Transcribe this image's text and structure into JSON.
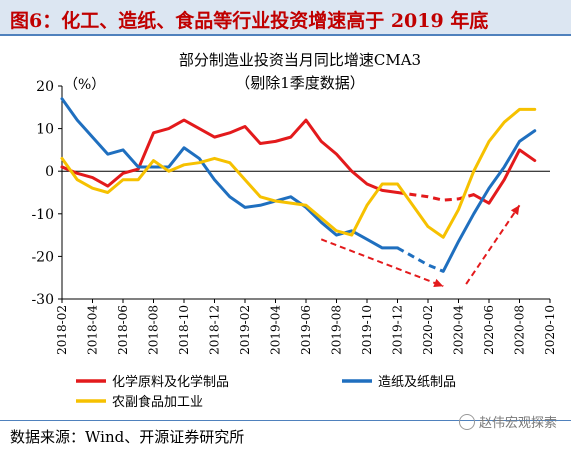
{
  "header": {
    "title": "图6：化工、造纸、食品等行业投资增速高于 2019 年底"
  },
  "source": "数据来源：Wind、开源证券研究所",
  "watermark": "赵伟宏观探索",
  "chart_data": {
    "type": "line",
    "title": "部分制造业投资当月同比增速CMA3",
    "subtitle": "（剔除1季度数据）",
    "ylabel": "（%）",
    "ylim": [
      -30,
      20
    ],
    "yticks": [
      20,
      10,
      0,
      -10,
      -20,
      -30
    ],
    "xlim": [
      0,
      32
    ],
    "x_tick_labels": [
      "2018-02",
      "2018-04",
      "2018-06",
      "2018-08",
      "2018-10",
      "2018-12",
      "2019-02",
      "2019-04",
      "2019-06",
      "2019-08",
      "2019-10",
      "2019-12",
      "2020-02",
      "2020-04",
      "2020-06",
      "2020-08",
      "2020-10"
    ],
    "grid": false,
    "legend_position": "bottom",
    "series": [
      {
        "name": "化学原料及化学制品",
        "color": "#e31a1c",
        "x": [
          0,
          1,
          2,
          3,
          4,
          5,
          6,
          7,
          8,
          9,
          10,
          11,
          12,
          13,
          14,
          15,
          16,
          17,
          18,
          19,
          20,
          21,
          22,
          23,
          24,
          25,
          26,
          27,
          28,
          29,
          30,
          31
        ],
        "values": [
          1,
          -0.5,
          -1.5,
          -3.5,
          -0.5,
          0.5,
          9,
          10,
          12,
          10,
          8,
          9,
          10.5,
          6.5,
          7,
          8,
          12,
          7,
          4,
          0,
          -3,
          -4.5,
          -5,
          -5.5,
          -6,
          -6.8,
          -6.5,
          -5.5,
          -7.5,
          -2,
          5,
          2.5
        ],
        "dashed_range": [
          22,
          27
        ]
      },
      {
        "name": "造纸及纸制品",
        "color": "#1f6fbf",
        "x": [
          0,
          1,
          2,
          3,
          4,
          5,
          6,
          7,
          8,
          9,
          10,
          11,
          12,
          13,
          14,
          15,
          16,
          17,
          18,
          19,
          20,
          21,
          22,
          23,
          24,
          25,
          26,
          27,
          28,
          29,
          30,
          31
        ],
        "values": [
          17,
          12,
          8,
          4,
          5,
          1,
          1,
          1,
          5.5,
          3,
          -2,
          -6,
          -8.5,
          -8,
          -7,
          -6,
          -8.5,
          -12,
          -15,
          -14,
          -16,
          -18,
          -18,
          -20,
          -22,
          -23.5,
          -16.5,
          -10,
          -4,
          1,
          7,
          9.5
        ],
        "dashed_range": [
          22,
          25
        ]
      },
      {
        "name": "农副食品加工业",
        "color": "#f6c100",
        "x": [
          0,
          1,
          2,
          3,
          4,
          5,
          6,
          7,
          8,
          9,
          10,
          11,
          12,
          13,
          14,
          15,
          16,
          17,
          18,
          19,
          20,
          21,
          22,
          23,
          24,
          25,
          26,
          27,
          28,
          29,
          30,
          31
        ],
        "values": [
          3,
          -2,
          -4,
          -5,
          -2,
          -2,
          2.5,
          0,
          1.5,
          2,
          3,
          2,
          -2,
          -6,
          -7,
          -7.5,
          -8,
          -11,
          -14,
          -15,
          -8,
          -3,
          -3,
          -8,
          -13,
          -15.5,
          -9,
          0,
          7,
          11.5,
          14.5,
          14.5
        ],
        "dashed_range": null
      }
    ],
    "annotations": [
      {
        "type": "arrow",
        "color": "#e31a1c",
        "from": [
          17,
          -16
        ],
        "to": [
          25,
          -27
        ]
      },
      {
        "type": "arrow",
        "color": "#e31a1c",
        "from": [
          26.5,
          -26.5
        ],
        "to": [
          30,
          -8
        ]
      }
    ]
  }
}
